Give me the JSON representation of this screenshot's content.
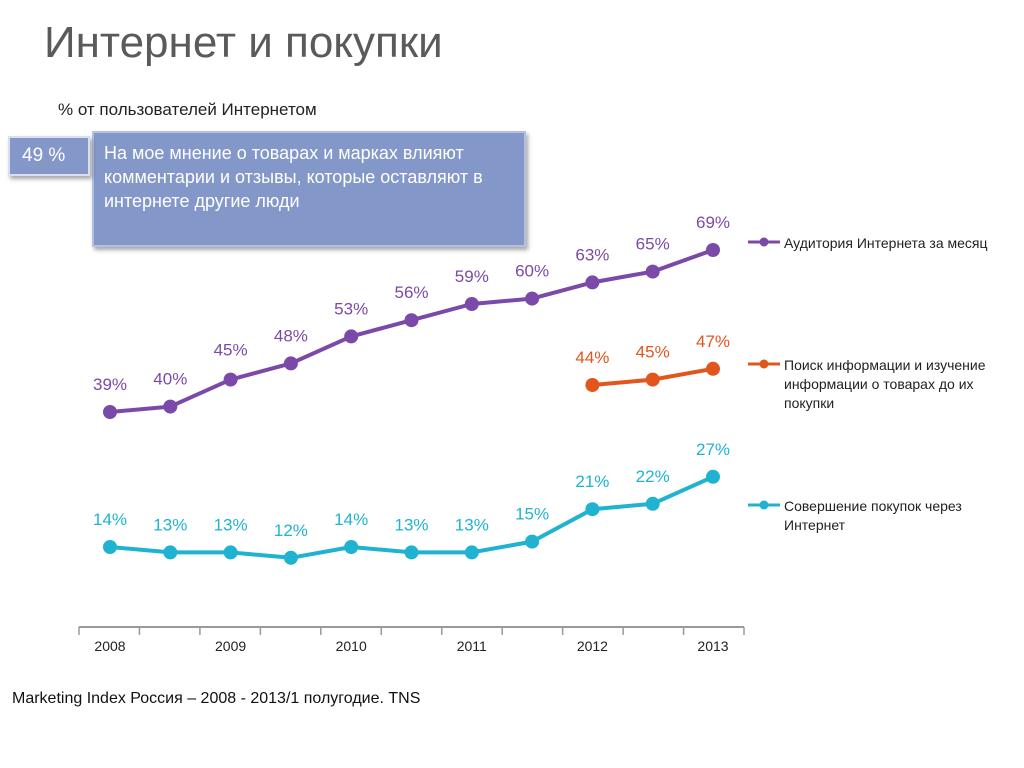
{
  "title": "Интернет и покупки",
  "subtitle": "% от пользователей Интернетом",
  "callout": {
    "badge": "49 %",
    "text": "На мое мнение о товарах и марках влияют комментарии и отзывы, которые оставляют в интернете другие люди"
  },
  "source": "Marketing Index Россия – 2008 - 2013/1 полугодие. TNS",
  "chart_data": {
    "type": "line",
    "x": [
      2008,
      2008.5,
      2009,
      2009.5,
      2010,
      2010.5,
      2011,
      2011.5,
      2012,
      2012.5,
      2013
    ],
    "x_tick_labels": [
      "2008",
      "2009",
      "2010",
      "2011",
      "2012",
      "2013"
    ],
    "x_tick_values": [
      2008,
      2009,
      2010,
      2011,
      2012,
      2013
    ],
    "series": [
      {
        "name": "Аудитория Интернета за месяц",
        "color": "#7b4aa8",
        "values": [
          39,
          40,
          45,
          48,
          53,
          56,
          59,
          60,
          63,
          65,
          69
        ],
        "labels": [
          "39%",
          "40%",
          "45%",
          "48%",
          "53%",
          "56%",
          "59%",
          "60%",
          "63%",
          "65%",
          "69%"
        ]
      },
      {
        "name": "Поиск информации и изучение информации о товарах до их покупки",
        "color": "#e2561e",
        "values": [
          null,
          null,
          null,
          null,
          null,
          null,
          null,
          null,
          44,
          45,
          47
        ],
        "labels": [
          null,
          null,
          null,
          null,
          null,
          null,
          null,
          null,
          "44%",
          "45%",
          "47%"
        ]
      },
      {
        "name": "Совершение покупок через Интернет",
        "color": "#1fb3d1",
        "values": [
          14,
          13,
          13,
          12,
          14,
          13,
          13,
          15,
          21,
          22,
          27
        ],
        "labels": [
          "14%",
          "13%",
          "13%",
          "12%",
          "14%",
          "13%",
          "13%",
          "15%",
          "21%",
          "22%",
          "27%"
        ]
      }
    ],
    "legend_position": "right",
    "grid": false
  }
}
